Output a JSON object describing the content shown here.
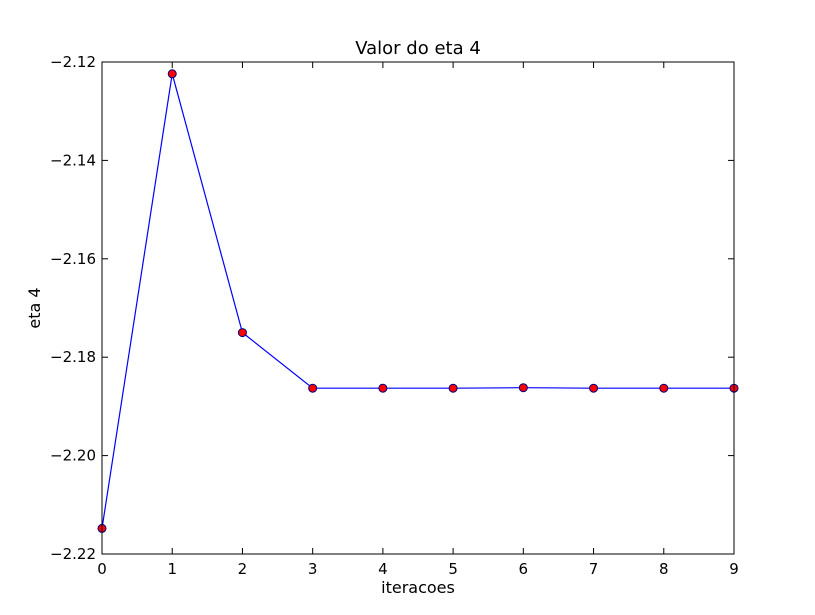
{
  "chart_data": {
    "type": "line",
    "title": "Valor do eta 4",
    "xlabel": "iteracoes",
    "ylabel": "eta 4",
    "xlim": [
      0,
      9
    ],
    "ylim": [
      -2.22,
      -2.12
    ],
    "x_ticks": [
      0,
      1,
      2,
      3,
      4,
      5,
      6,
      7,
      8,
      9
    ],
    "x_tick_labels": [
      "0",
      "1",
      "2",
      "3",
      "4",
      "5",
      "6",
      "7",
      "8",
      "9"
    ],
    "y_ticks": [
      -2.22,
      -2.2,
      -2.18,
      -2.16,
      -2.14,
      -2.12
    ],
    "y_tick_labels": [
      "−2.22",
      "−2.20",
      "−2.18",
      "−2.16",
      "−2.14",
      "−2.12"
    ],
    "grid": false,
    "series": [
      {
        "x": [
          0,
          1,
          2,
          3,
          4,
          5,
          6,
          7,
          8,
          9
        ],
        "values": [
          -2.2148,
          -2.1224,
          -2.175,
          -2.1863,
          -2.1863,
          -2.1863,
          -2.1862,
          -2.1863,
          -2.1863,
          -2.1863
        ],
        "line_color": "#0000ff",
        "marker_color": "#ff0000",
        "marker_edge_color": "#000080"
      }
    ]
  }
}
